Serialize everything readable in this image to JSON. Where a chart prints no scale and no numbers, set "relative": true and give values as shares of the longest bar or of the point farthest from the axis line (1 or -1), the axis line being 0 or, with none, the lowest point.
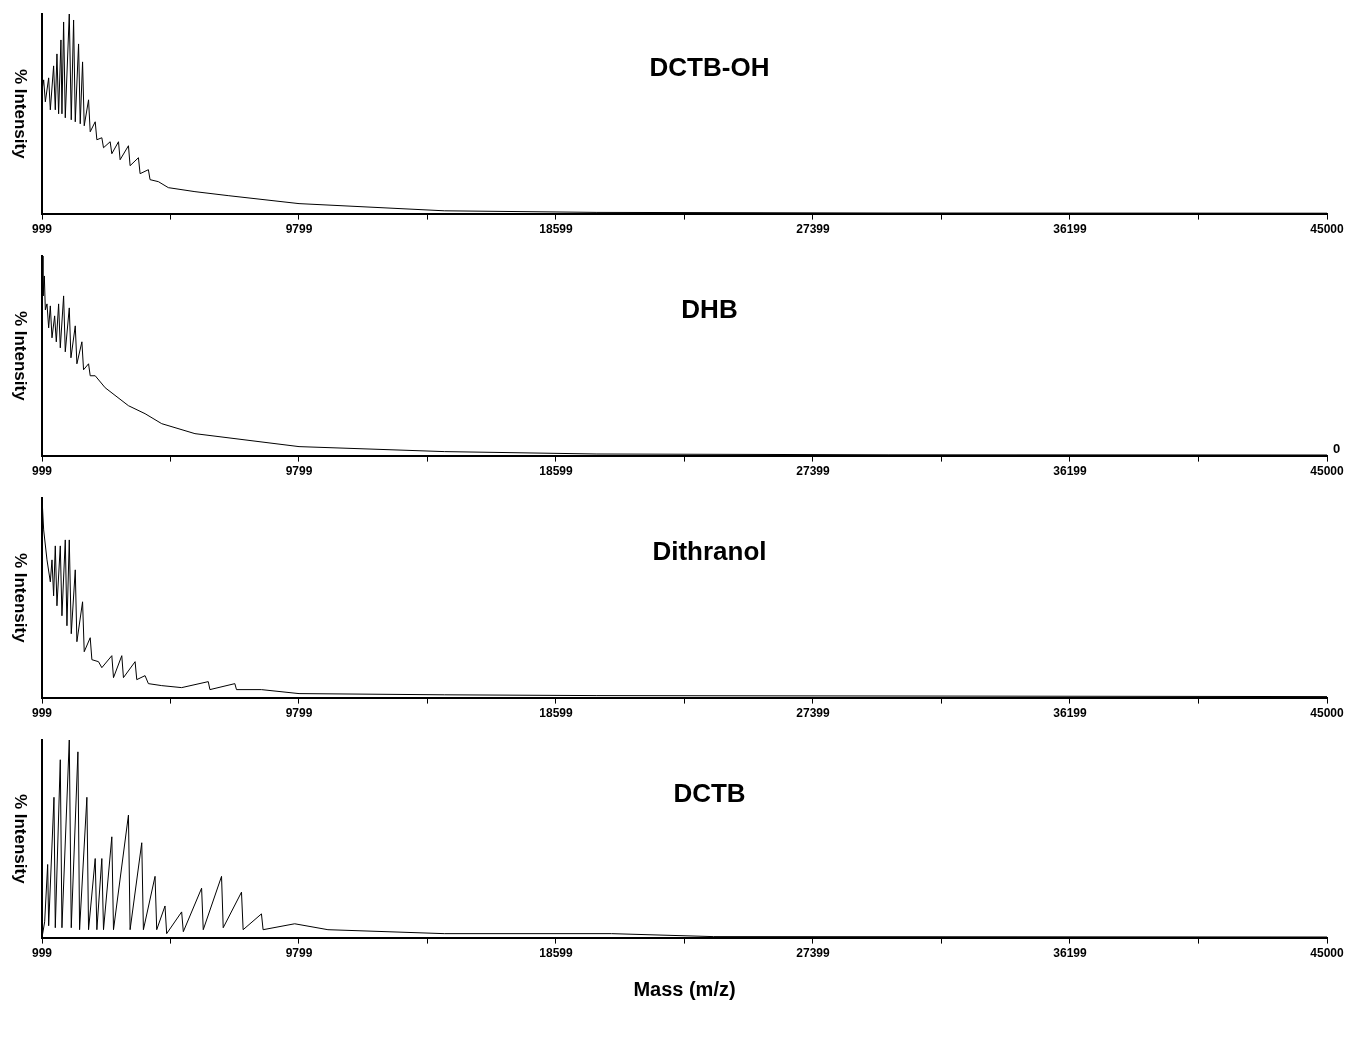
{
  "chart_data": [
    {
      "type": "line",
      "title": "DCTB-OH",
      "ylabel": "% Intensity",
      "relative": true,
      "marker": "none",
      "color": "#000000",
      "xlim": [
        999,
        45000
      ],
      "xticks": [
        999,
        {
          "value": 5399,
          "label": null
        },
        9799,
        {
          "value": 14199,
          "label": null
        },
        18599,
        {
          "value": 22999,
          "label": null
        },
        27399,
        {
          "value": 31799,
          "label": null
        },
        36199,
        {
          "value": 40599,
          "label": null
        },
        45000
      ],
      "x": [
        999,
        1056,
        1113,
        1227,
        1284,
        1397,
        1454,
        1511,
        1568,
        1648,
        1682,
        1739,
        1796,
        1933,
        2001,
        2081,
        2138,
        2251,
        2308,
        2388,
        2445,
        2593,
        2650,
        2821,
        2878,
        3048,
        3105,
        3333,
        3390,
        3618,
        3674,
        3959,
        4016,
        4301,
        4358,
        4642,
        4699,
        4984,
        5325,
        6236,
        7374,
        9800,
        14775,
        20000,
        30000,
        45000
      ],
      "values": [
        0.62,
        0.67,
        0.56,
        0.68,
        0.52,
        0.74,
        0.52,
        0.8,
        0.5,
        0.87,
        0.5,
        0.96,
        0.48,
        1,
        0.47,
        0.97,
        0.46,
        0.85,
        0.45,
        0.76,
        0.44,
        0.57,
        0.41,
        0.46,
        0.37,
        0.38,
        0.33,
        0.36,
        0.3,
        0.36,
        0.27,
        0.34,
        0.24,
        0.28,
        0.2,
        0.22,
        0.17,
        0.16,
        0.13,
        0.11,
        0.09,
        0.05,
        0.014,
        0.006,
        0.003,
        0.002
      ]
    },
    {
      "type": "line",
      "title": "DHB",
      "ylabel": "% Intensity",
      "relative": true,
      "marker": "none",
      "color": "#000000",
      "annotations": [
        "0"
      ],
      "xlim": [
        999,
        45000
      ],
      "xticks": [
        999,
        {
          "value": 5399,
          "label": null
        },
        9799,
        {
          "value": 14199,
          "label": null
        },
        18599,
        {
          "value": 22999,
          "label": null
        },
        27399,
        {
          "value": 31799,
          "label": null
        },
        36199,
        {
          "value": 40599,
          "label": null
        },
        45000
      ],
      "x": [
        999,
        1033,
        1079,
        1113,
        1170,
        1227,
        1284,
        1341,
        1432,
        1489,
        1568,
        1625,
        1739,
        1796,
        1933,
        1990,
        2138,
        2194,
        2365,
        2422,
        2593,
        2650,
        2821,
        3162,
        3959,
        4528,
        5098,
        6236,
        9800,
        14775,
        20000,
        30000,
        45000
      ],
      "values": [
        1,
        0.8,
        0.9,
        0.73,
        0.76,
        0.64,
        0.75,
        0.59,
        0.7,
        0.57,
        0.76,
        0.54,
        0.8,
        0.52,
        0.74,
        0.49,
        0.65,
        0.46,
        0.57,
        0.43,
        0.46,
        0.4,
        0.4,
        0.34,
        0.25,
        0.21,
        0.16,
        0.11,
        0.045,
        0.02,
        0.008,
        0.004,
        0.003
      ]
    },
    {
      "type": "line",
      "title": "Dithranol",
      "ylabel": "% Intensity",
      "relative": true,
      "marker": "none",
      "color": "#000000",
      "xlim": [
        999,
        45000
      ],
      "xticks": [
        999,
        {
          "value": 5399,
          "label": null
        },
        9799,
        {
          "value": 14199,
          "label": null
        },
        18599,
        {
          "value": 22999,
          "label": null
        },
        27399,
        {
          "value": 31799,
          "label": null
        },
        36199,
        {
          "value": 40599,
          "label": null
        },
        45000
      ],
      "x": [
        999,
        1056,
        1170,
        1284,
        1341,
        1397,
        1454,
        1511,
        1625,
        1682,
        1796,
        1853,
        1933,
        2001,
        2138,
        2194,
        2388,
        2445,
        2650,
        2707,
        2934,
        3048,
        3390,
        3447,
        3731,
        3788,
        4187,
        4244,
        4528,
        4642,
        5098,
        5781,
        6692,
        6749,
        7602,
        7659,
        8513,
        9800,
        14775,
        20000,
        45000
      ],
      "values": [
        1,
        0.84,
        0.69,
        0.58,
        0.69,
        0.51,
        0.76,
        0.46,
        0.76,
        0.41,
        0.79,
        0.36,
        0.79,
        0.32,
        0.64,
        0.28,
        0.48,
        0.23,
        0.3,
        0.19,
        0.18,
        0.15,
        0.21,
        0.1,
        0.21,
        0.1,
        0.18,
        0.09,
        0.11,
        0.07,
        0.06,
        0.05,
        0.08,
        0.04,
        0.07,
        0.04,
        0.04,
        0.02,
        0.014,
        0.01,
        0.005
      ]
    },
    {
      "type": "line",
      "title": "DCTB",
      "ylabel": "% Intensity",
      "xlabel": "Mass (m/z)",
      "relative": true,
      "marker": "none",
      "color": "#000000",
      "xlim": [
        999,
        45000
      ],
      "xticks": [
        999,
        {
          "value": 5399,
          "label": null
        },
        9799,
        {
          "value": 14199,
          "label": null
        },
        18599,
        {
          "value": 22999,
          "label": null
        },
        27399,
        {
          "value": 31799,
          "label": null
        },
        36199,
        {
          "value": 40599,
          "label": null
        },
        45000
      ],
      "x": [
        999,
        1090,
        1193,
        1227,
        1409,
        1454,
        1625,
        1682,
        1933,
        2001,
        2229,
        2286,
        2536,
        2593,
        2821,
        2878,
        3048,
        3105,
        3390,
        3447,
        3959,
        4016,
        4415,
        4471,
        4870,
        4927,
        5211,
        5268,
        5781,
        5838,
        6464,
        6521,
        7147,
        7204,
        7830,
        7886,
        8513,
        8570,
        9652,
        10790,
        14775,
        20500,
        24000,
        45000
      ],
      "values": [
        0,
        0.08,
        0.37,
        0.06,
        0.71,
        0.05,
        0.9,
        0.05,
        1,
        0.05,
        0.94,
        0.04,
        0.71,
        0.04,
        0.4,
        0.04,
        0.4,
        0.04,
        0.51,
        0.04,
        0.62,
        0.04,
        0.48,
        0.04,
        0.31,
        0.04,
        0.16,
        0.02,
        0.13,
        0.03,
        0.25,
        0.04,
        0.31,
        0.05,
        0.23,
        0.04,
        0.12,
        0.04,
        0.07,
        0.04,
        0.02,
        0.02,
        0.005,
        0.003
      ]
    }
  ]
}
